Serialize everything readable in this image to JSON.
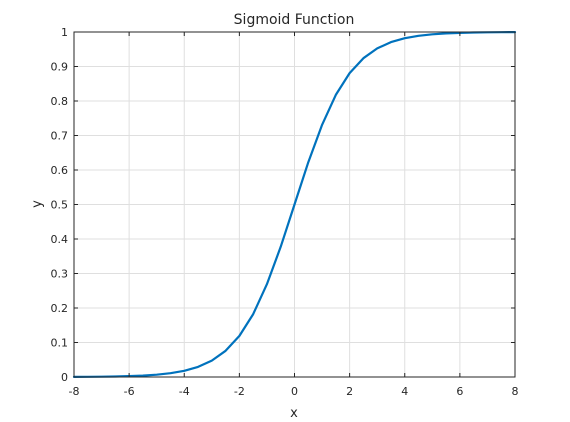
{
  "chart_data": {
    "type": "line",
    "title": "Sigmoid Function",
    "xlabel": "x",
    "ylabel": "y",
    "xlim": [
      -8,
      8
    ],
    "ylim": [
      0,
      1
    ],
    "grid": true,
    "x_ticks": [
      -8,
      -6,
      -4,
      -2,
      0,
      2,
      4,
      6,
      8
    ],
    "x_tick_labels": [
      "-8",
      "-6",
      "-4",
      "-2",
      "0",
      "2",
      "4",
      "6",
      "8"
    ],
    "y_ticks": [
      0,
      0.1,
      0.2,
      0.3,
      0.4,
      0.5,
      0.6,
      0.7,
      0.8,
      0.9,
      1
    ],
    "y_tick_labels": [
      "0",
      "0.1",
      "0.2",
      "0.3",
      "0.4",
      "0.5",
      "0.6",
      "0.7",
      "0.8",
      "0.9",
      "1"
    ],
    "series": [
      {
        "color": "#0072bd",
        "x": [
          -8,
          -7.5,
          -7,
          -6.5,
          -6,
          -5.5,
          -5,
          -4.5,
          -4,
          -3.5,
          -3,
          -2.5,
          -2,
          -1.5,
          -1,
          -0.5,
          0,
          0.5,
          1,
          1.5,
          2,
          2.5,
          3,
          3.5,
          4,
          4.5,
          5,
          5.5,
          6,
          6.5,
          7,
          7.5,
          8
        ],
        "y": [
          0.0003,
          0.0006,
          0.0009,
          0.0015,
          0.0025,
          0.0041,
          0.0067,
          0.011,
          0.018,
          0.0293,
          0.0474,
          0.0759,
          0.1192,
          0.1824,
          0.2689,
          0.3775,
          0.5,
          0.6225,
          0.7311,
          0.8176,
          0.8808,
          0.9241,
          0.9526,
          0.9707,
          0.982,
          0.989,
          0.9933,
          0.9959,
          0.9975,
          0.9985,
          0.9991,
          0.9994,
          0.9997
        ]
      }
    ]
  }
}
